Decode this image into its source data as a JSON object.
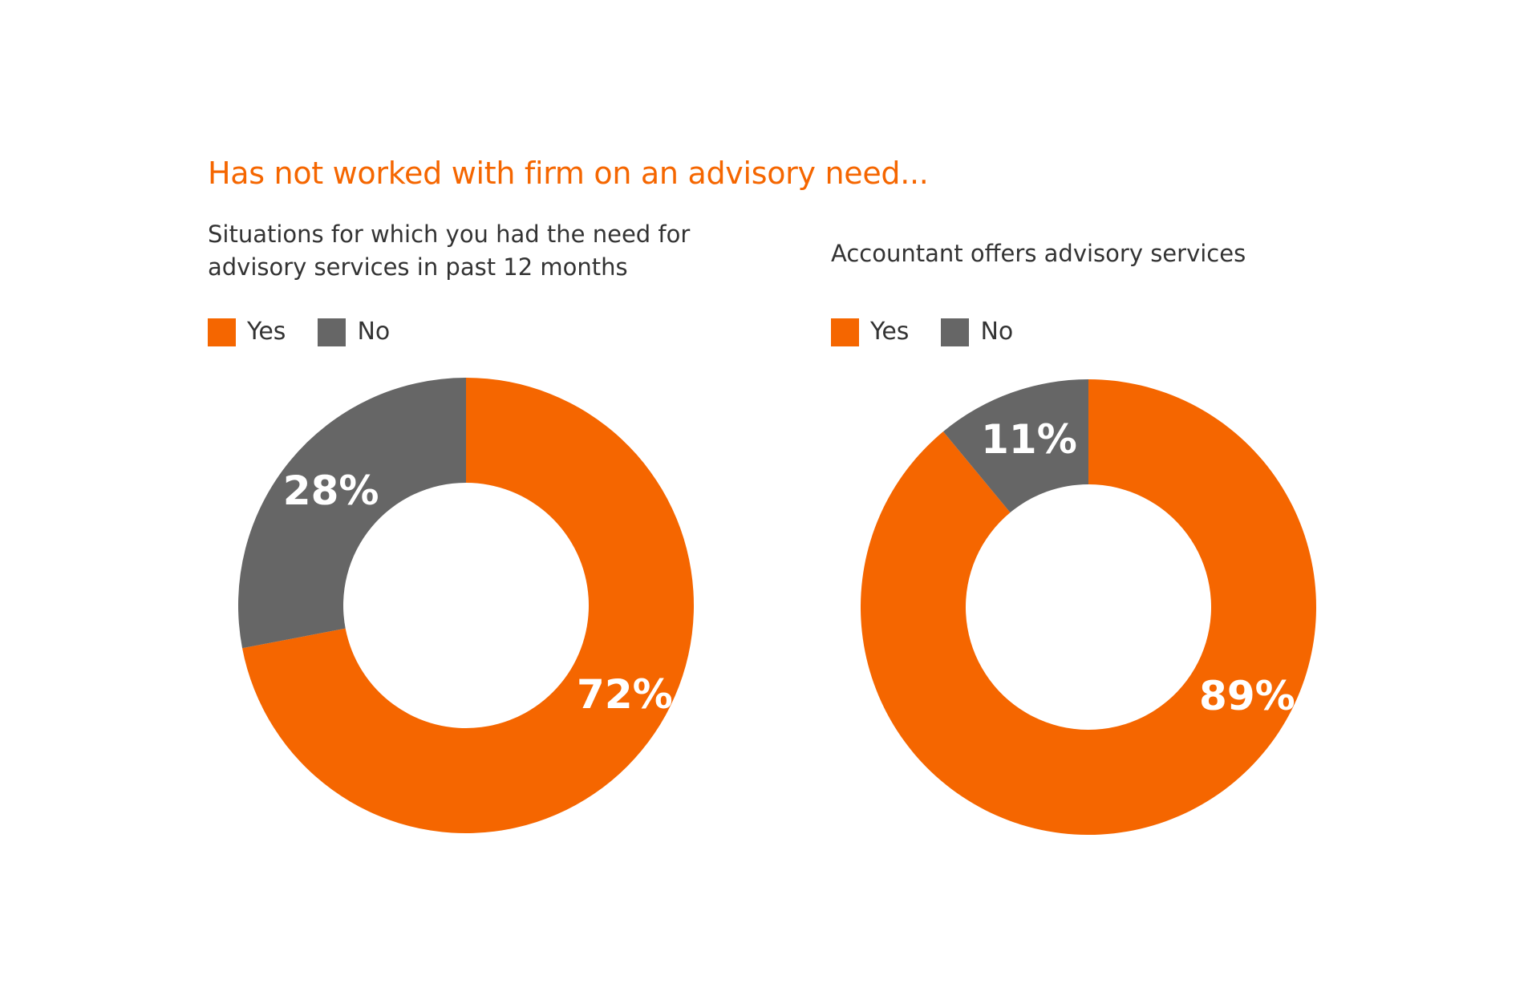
{
  "title": "Has not worked with firm on an advisory need...",
  "colors": {
    "yes": "#f56600",
    "no": "#666666",
    "title": "#f56600",
    "text": "#333333"
  },
  "chart_data": [
    {
      "type": "pie",
      "donut": true,
      "title_lines": [
        "Situations for which you had the need for",
        "advisory services in past 12 months"
      ],
      "legend": [
        "Yes",
        "No"
      ],
      "legend_placement": "top-left",
      "slices": [
        {
          "label": "Yes",
          "value": 72,
          "display": "72%"
        },
        {
          "label": "No",
          "value": 28,
          "display": "28%"
        }
      ]
    },
    {
      "type": "pie",
      "donut": true,
      "title_lines": [
        "Accountant offers advisory services"
      ],
      "legend": [
        "Yes",
        "No"
      ],
      "legend_placement": "top-left",
      "slices": [
        {
          "label": "Yes",
          "value": 89,
          "display": "89%"
        },
        {
          "label": "No",
          "value": 11,
          "display": "11%"
        }
      ]
    }
  ]
}
